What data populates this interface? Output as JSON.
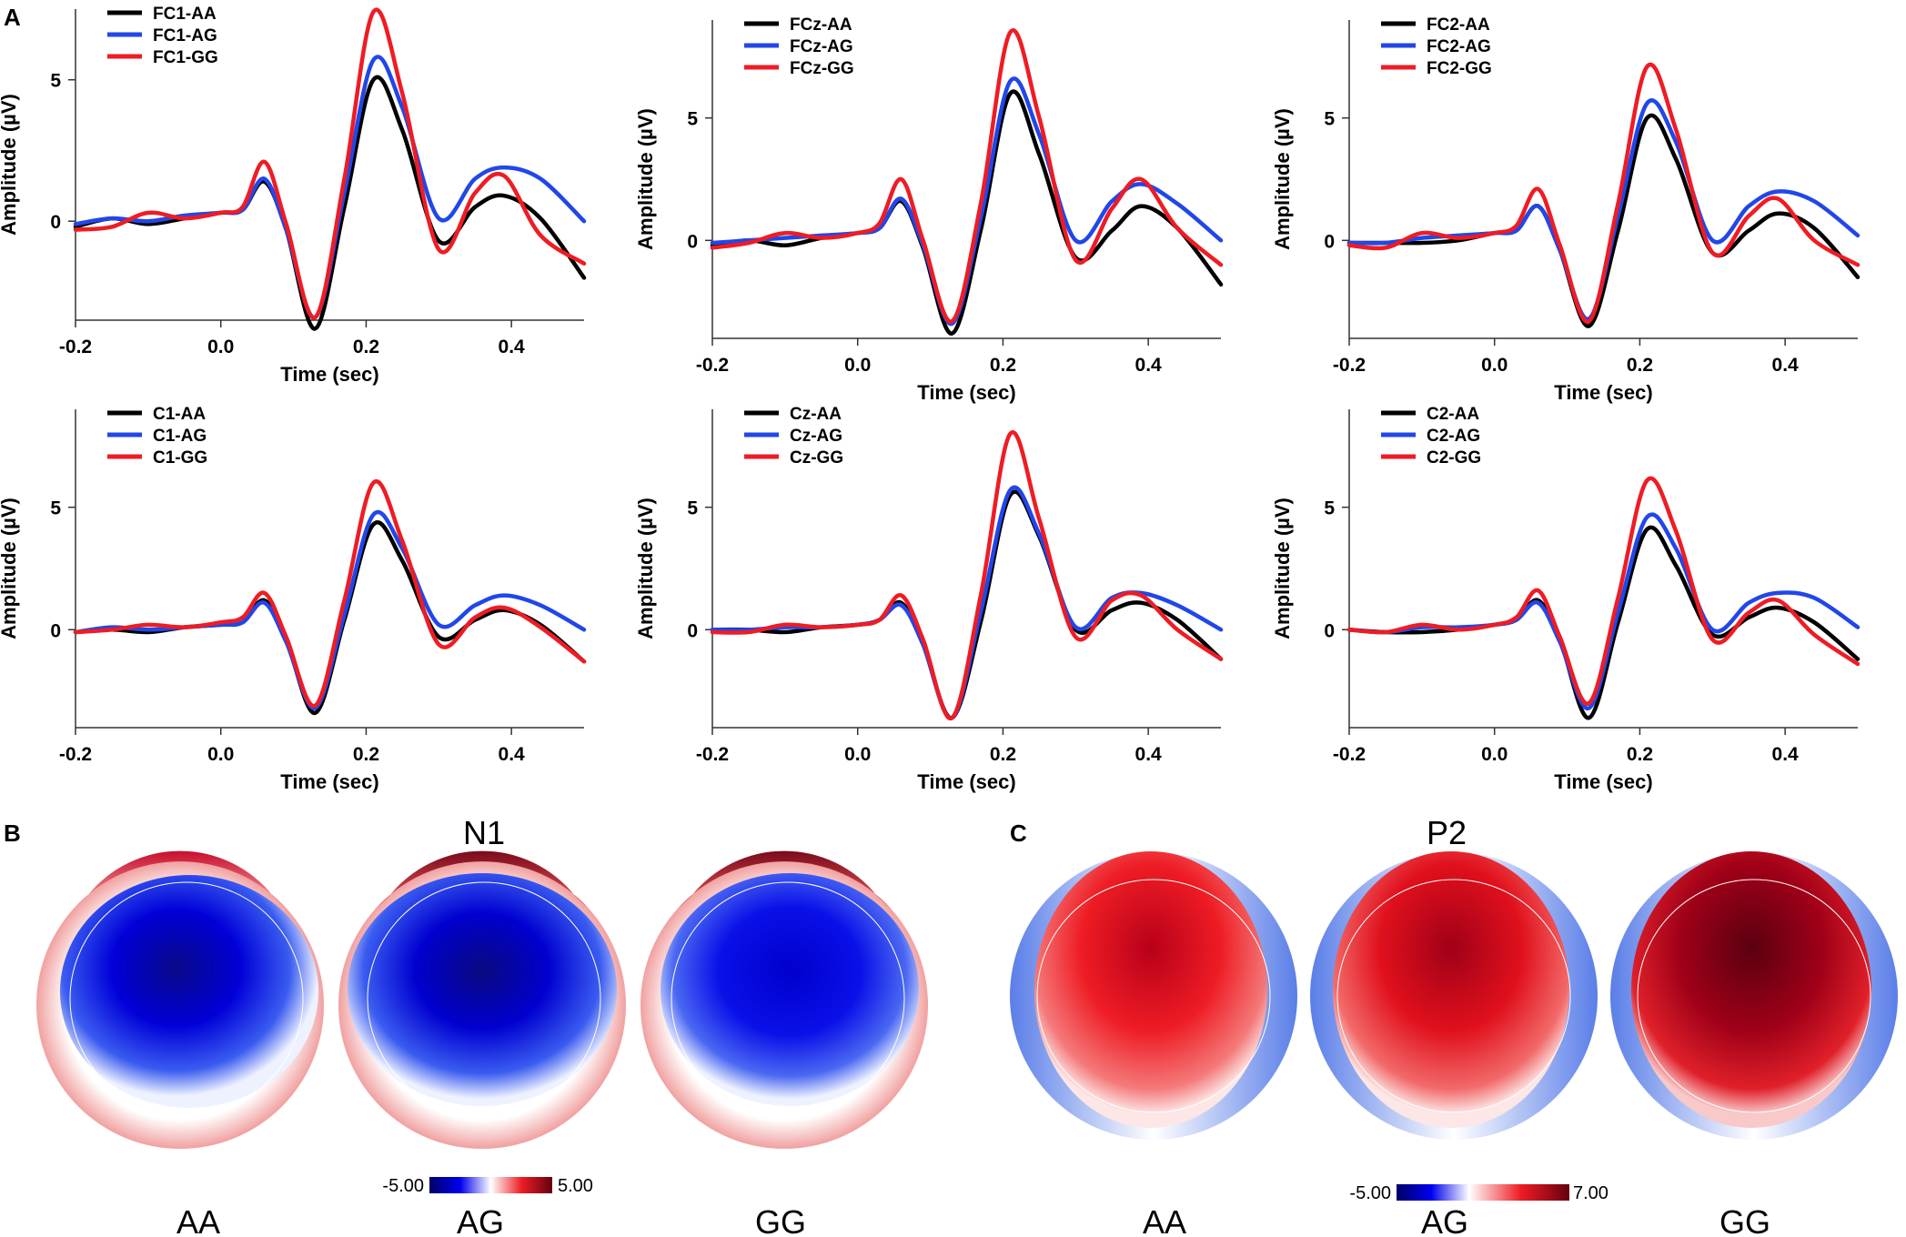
{
  "panel_labels": {
    "a": "A",
    "b": "B",
    "c": "C"
  },
  "colors": {
    "AA": "#000000",
    "AG": "#2147e8",
    "GG": "#ee1c24"
  },
  "chart_data": [
    {
      "type": "line",
      "electrode": "FC1",
      "xlabel": "Time (sec)",
      "ylabel": "Amplitude (µV)",
      "xlim": [
        -0.2,
        0.5
      ],
      "ylim": [
        -3.5,
        7.5
      ],
      "x_ticks": [
        -0.2,
        0.0,
        0.2,
        0.4
      ],
      "x_tick_labels": [
        "-0.2",
        "0.0",
        "0.2",
        "0.4"
      ],
      "y_ticks": [
        0,
        5
      ],
      "y_tick_labels": [
        "0",
        "5"
      ],
      "legend": [
        "FC1-AA",
        "FC1-AG",
        "FC1-GG"
      ],
      "x": [
        -0.2,
        -0.15,
        -0.1,
        -0.05,
        0.0,
        0.03,
        0.06,
        0.09,
        0.13,
        0.17,
        0.21,
        0.25,
        0.3,
        0.35,
        0.39,
        0.44,
        0.5
      ],
      "series": [
        {
          "name": "FC1-AA",
          "values": [
            -0.2,
            0.1,
            -0.1,
            0.1,
            0.3,
            0.4,
            1.4,
            -0.3,
            -3.8,
            0.5,
            5.0,
            3.2,
            -0.7,
            0.5,
            0.9,
            0.1,
            -2.0
          ]
        },
        {
          "name": "FC1-AG",
          "values": [
            -0.1,
            0.1,
            0.0,
            0.2,
            0.3,
            0.4,
            1.5,
            -0.3,
            -3.4,
            1.0,
            5.7,
            4.0,
            0.1,
            1.5,
            1.9,
            1.5,
            0.0
          ]
        },
        {
          "name": "FC1-GG",
          "values": [
            -0.3,
            -0.2,
            0.3,
            0.1,
            0.3,
            0.5,
            2.1,
            -0.1,
            -3.4,
            1.5,
            7.4,
            4.5,
            -1.0,
            1.0,
            1.6,
            -0.5,
            -1.5
          ]
        }
      ]
    },
    {
      "type": "line",
      "electrode": "FCz",
      "xlabel": "Time (sec)",
      "ylabel": "Amplitude (µV)",
      "xlim": [
        -0.2,
        0.5
      ],
      "ylim": [
        -4,
        9
      ],
      "x_ticks": [
        -0.2,
        0.0,
        0.2,
        0.4
      ],
      "x_tick_labels": [
        "-0.2",
        "0.0",
        "0.2",
        "0.4"
      ],
      "y_ticks": [
        0,
        5
      ],
      "y_tick_labels": [
        "0",
        "5"
      ],
      "legend": [
        "FCz-AA",
        "FCz-AG",
        "FCz-GG"
      ],
      "x": [
        -0.2,
        -0.15,
        -0.1,
        -0.05,
        0.0,
        0.03,
        0.06,
        0.09,
        0.13,
        0.17,
        0.21,
        0.25,
        0.3,
        0.35,
        0.39,
        0.44,
        0.5
      ],
      "series": [
        {
          "name": "FCz-AA",
          "values": [
            -0.2,
            0.0,
            -0.2,
            0.1,
            0.3,
            0.5,
            1.6,
            -0.3,
            -3.8,
            0.5,
            6.0,
            3.5,
            -0.7,
            0.4,
            1.4,
            0.5,
            -1.8
          ]
        },
        {
          "name": "FCz-AG",
          "values": [
            -0.1,
            0.0,
            0.1,
            0.2,
            0.3,
            0.5,
            1.7,
            -0.2,
            -3.4,
            1.0,
            6.5,
            4.3,
            0.0,
            1.6,
            2.3,
            1.5,
            0.0
          ]
        },
        {
          "name": "FCz-GG",
          "values": [
            -0.3,
            -0.1,
            0.3,
            0.1,
            0.3,
            0.7,
            2.5,
            0.0,
            -3.3,
            1.6,
            8.5,
            5.0,
            -0.8,
            1.3,
            2.5,
            0.5,
            -1.0
          ]
        }
      ]
    },
    {
      "type": "line",
      "electrode": "FC2",
      "xlabel": "Time (sec)",
      "ylabel": "Amplitude (µV)",
      "xlim": [
        -0.2,
        0.5
      ],
      "ylim": [
        -4,
        9
      ],
      "x_ticks": [
        -0.2,
        0.0,
        0.2,
        0.4
      ],
      "x_tick_labels": [
        "-0.2",
        "0.0",
        "0.2",
        "0.4"
      ],
      "y_ticks": [
        0,
        5
      ],
      "y_tick_labels": [
        "0",
        "5"
      ],
      "legend": [
        "FC2-AA",
        "FC2-AG",
        "FC2-GG"
      ],
      "x": [
        -0.2,
        -0.15,
        -0.1,
        -0.05,
        0.0,
        0.03,
        0.06,
        0.09,
        0.13,
        0.17,
        0.21,
        0.25,
        0.3,
        0.35,
        0.39,
        0.44,
        0.5
      ],
      "series": [
        {
          "name": "FC2-AA",
          "values": [
            -0.1,
            -0.1,
            -0.1,
            0.0,
            0.3,
            0.4,
            1.4,
            -0.4,
            -3.5,
            0.4,
            5.0,
            3.3,
            -0.5,
            0.4,
            1.1,
            0.5,
            -1.5
          ]
        },
        {
          "name": "FC2-AG",
          "values": [
            -0.1,
            -0.1,
            0.1,
            0.2,
            0.3,
            0.4,
            1.4,
            -0.4,
            -3.2,
            1.0,
            5.6,
            4.0,
            0.0,
            1.4,
            2.0,
            1.6,
            0.2
          ]
        },
        {
          "name": "FC2-GG",
          "values": [
            -0.2,
            -0.3,
            0.3,
            0.1,
            0.3,
            0.6,
            2.1,
            -0.2,
            -3.3,
            1.5,
            7.1,
            4.5,
            -0.5,
            1.0,
            1.7,
            0.0,
            -1.0
          ]
        }
      ]
    },
    {
      "type": "line",
      "electrode": "C1",
      "xlabel": "Time (sec)",
      "ylabel": "Amplitude (µV)",
      "xlim": [
        -0.2,
        0.5
      ],
      "ylim": [
        -4,
        9
      ],
      "x_ticks": [
        -0.2,
        0.0,
        0.2,
        0.4
      ],
      "x_tick_labels": [
        "-0.2",
        "0.0",
        "0.2",
        "0.4"
      ],
      "y_ticks": [
        0,
        5
      ],
      "y_tick_labels": [
        "0",
        "5"
      ],
      "legend": [
        "C1-AA",
        "C1-AG",
        "C1-GG"
      ],
      "x": [
        -0.2,
        -0.15,
        -0.1,
        -0.05,
        0.0,
        0.03,
        0.06,
        0.09,
        0.13,
        0.17,
        0.21,
        0.25,
        0.3,
        0.35,
        0.39,
        0.44,
        0.5
      ],
      "series": [
        {
          "name": "C1-AA",
          "values": [
            -0.1,
            0.0,
            -0.1,
            0.1,
            0.2,
            0.3,
            1.2,
            -0.4,
            -3.4,
            0.4,
            4.3,
            2.8,
            -0.3,
            0.4,
            0.8,
            0.2,
            -1.3
          ]
        },
        {
          "name": "C1-AG",
          "values": [
            -0.1,
            0.1,
            0.0,
            0.1,
            0.2,
            0.3,
            1.1,
            -0.5,
            -3.2,
            0.6,
            4.7,
            3.3,
            0.2,
            1.0,
            1.4,
            1.0,
            0.0
          ]
        },
        {
          "name": "C1-GG",
          "values": [
            -0.1,
            0.0,
            0.2,
            0.1,
            0.3,
            0.5,
            1.5,
            -0.3,
            -3.1,
            1.2,
            6.0,
            3.6,
            -0.6,
            0.5,
            0.9,
            0.1,
            -1.3
          ]
        }
      ]
    },
    {
      "type": "line",
      "electrode": "Cz",
      "xlabel": "Time (sec)",
      "ylabel": "Amplitude (µV)",
      "xlim": [
        -0.2,
        0.5
      ],
      "ylim": [
        -4,
        9
      ],
      "x_ticks": [
        -0.2,
        0.0,
        0.2,
        0.4
      ],
      "x_tick_labels": [
        "-0.2",
        "0.0",
        "0.2",
        "0.4"
      ],
      "y_ticks": [
        0,
        5
      ],
      "y_tick_labels": [
        "0",
        "5"
      ],
      "legend": [
        "Cz-AA",
        "Cz-AG",
        "Cz-GG"
      ],
      "x": [
        -0.2,
        -0.15,
        -0.1,
        -0.05,
        0.0,
        0.03,
        0.06,
        0.09,
        0.13,
        0.17,
        0.21,
        0.25,
        0.3,
        0.35,
        0.39,
        0.44,
        0.5
      ],
      "series": [
        {
          "name": "Cz-AA",
          "values": [
            0.0,
            0.0,
            -0.1,
            0.1,
            0.2,
            0.4,
            1.1,
            -0.6,
            -3.6,
            0.4,
            5.5,
            3.8,
            0.0,
            0.8,
            1.1,
            0.4,
            -1.2
          ]
        },
        {
          "name": "Cz-AG",
          "values": [
            0.0,
            0.0,
            0.1,
            0.1,
            0.2,
            0.4,
            1.0,
            -0.6,
            -3.6,
            0.8,
            5.7,
            3.9,
            0.1,
            1.3,
            1.5,
            1.0,
            0.0
          ]
        },
        {
          "name": "Cz-GG",
          "values": [
            -0.1,
            -0.1,
            0.2,
            0.1,
            0.2,
            0.4,
            1.4,
            -0.4,
            -3.6,
            1.5,
            8.0,
            4.5,
            -0.3,
            1.2,
            1.4,
            0.0,
            -1.2
          ]
        }
      ]
    },
    {
      "type": "line",
      "electrode": "C2",
      "xlabel": "Time (sec)",
      "ylabel": "Amplitude (µV)",
      "xlim": [
        -0.2,
        0.5
      ],
      "ylim": [
        -4,
        9
      ],
      "x_ticks": [
        -0.2,
        0.0,
        0.2,
        0.4
      ],
      "x_tick_labels": [
        "-0.2",
        "0.0",
        "0.2",
        "0.4"
      ],
      "y_ticks": [
        0,
        5
      ],
      "y_tick_labels": [
        "0",
        "5"
      ],
      "legend": [
        "C2-AA",
        "C2-AG",
        "C2-GG"
      ],
      "x": [
        -0.2,
        -0.15,
        -0.1,
        -0.05,
        0.0,
        0.03,
        0.06,
        0.09,
        0.13,
        0.17,
        0.21,
        0.25,
        0.3,
        0.35,
        0.39,
        0.44,
        0.5
      ],
      "series": [
        {
          "name": "C2-AA",
          "values": [
            0.0,
            -0.1,
            -0.1,
            0.0,
            0.2,
            0.4,
            1.2,
            -0.4,
            -3.6,
            0.3,
            4.1,
            2.6,
            -0.2,
            0.5,
            0.9,
            0.3,
            -1.2
          ]
        },
        {
          "name": "C2-AG",
          "values": [
            0.0,
            -0.1,
            0.1,
            0.1,
            0.2,
            0.4,
            1.1,
            -0.5,
            -3.2,
            0.7,
            4.6,
            3.3,
            0.0,
            1.1,
            1.5,
            1.3,
            0.1
          ]
        },
        {
          "name": "C2-GG",
          "values": [
            0.0,
            -0.1,
            0.2,
            0.0,
            0.2,
            0.5,
            1.6,
            -0.3,
            -3.0,
            1.3,
            6.1,
            4.0,
            -0.4,
            0.7,
            1.2,
            -0.2,
            -1.4
          ]
        }
      ]
    }
  ],
  "topo_b": {
    "title": "N1",
    "labels": [
      "AA",
      "AG",
      "GG"
    ],
    "colorbar": {
      "min_label": "-5.00",
      "max_label": "5.00",
      "colors": [
        "#000066",
        "#0000ee",
        "#ffffff",
        "#ee1c24",
        "#660010"
      ]
    }
  },
  "topo_c": {
    "title": "P2",
    "labels": [
      "AA",
      "AG",
      "GG"
    ],
    "colorbar": {
      "min_label": "-5.00",
      "max_label": "7.00",
      "colors": [
        "#000066",
        "#0000ee",
        "#ffffff",
        "#ee1c24",
        "#660010"
      ]
    }
  }
}
